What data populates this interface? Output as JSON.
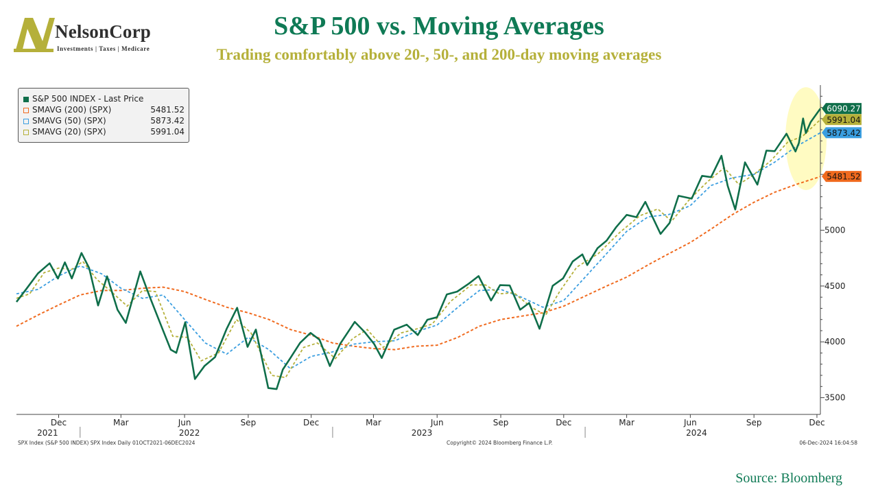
{
  "header": {
    "title": "S&P 500 vs. Moving Averages",
    "subtitle": "Trading comfortably above 20-, 50-, and 200-day moving averages"
  },
  "logo": {
    "name": "NelsonCorp",
    "tagline": "Investments | Taxes | Medicare",
    "colors": {
      "mark": "#b5b03a",
      "text": "#2f2f2f"
    }
  },
  "colors": {
    "title": "#0f7a55",
    "subtitle": "#b5b03a",
    "price": "#0f6e4a",
    "sma200": "#f06a1e",
    "sma50": "#3a9ee0",
    "sma20": "#b5b03a",
    "highlight": "#fffbc2"
  },
  "legend": {
    "items": [
      {
        "label": "S&P 500 INDEX - Last Price",
        "value": ""
      },
      {
        "label": "SMAVG (200) (SPX)",
        "value": "5481.52"
      },
      {
        "label": "SMAVG (50) (SPX)",
        "value": "5873.42"
      },
      {
        "label": "SMAVG (20) (SPX)",
        "value": "5991.04"
      }
    ]
  },
  "footer": {
    "left": "SPX Index (S&P 500 INDEX) SPX Index  Daily 01OCT2021-06DEC2024",
    "center": "Copyright© 2024 Bloomberg Finance L.P.",
    "right": "06-Dec-2024 16:04:58",
    "source": "Source: Bloomberg"
  },
  "chart_data": {
    "type": "line",
    "x_range": [
      "2021-10-01",
      "2024-12-06"
    ],
    "ylim": [
      3350,
      6300
    ],
    "y_ticks": [
      "3500",
      "4000",
      "4500",
      "5000"
    ],
    "x_tick_labels": [
      "Dec",
      "Mar",
      "Jun",
      "Sep",
      "Dec",
      "Mar",
      "Jun",
      "Sep",
      "Dec",
      "Mar",
      "Jun",
      "Sep",
      "Dec"
    ],
    "x_tick_dates": [
      "2021-12-01",
      "2022-03-01",
      "2022-06-01",
      "2022-09-01",
      "2022-12-01",
      "2023-03-01",
      "2023-06-01",
      "2023-09-01",
      "2023-12-01",
      "2024-03-01",
      "2024-06-01",
      "2024-09-01",
      "2024-12-01"
    ],
    "year_labels": [
      "2021",
      "2022",
      "2023",
      "2024"
    ],
    "year_label_dates": [
      "2021-11-15",
      "2022-06-08",
      "2023-05-10",
      "2024-06-10"
    ],
    "year_dividers": [
      "2022-01-01",
      "2023-01-01",
      "2024-01-01"
    ],
    "last_value_tags": [
      "6090.27",
      "5991.04",
      "5873.42",
      "5481.52"
    ],
    "annotation": "highlight ellipse around latest values",
    "series": [
      {
        "name": "S&P 500 INDEX - Last Price",
        "key": "price",
        "last": 6090.27,
        "points": [
          [
            "2021-10-01",
            4357
          ],
          [
            "2021-10-15",
            4471
          ],
          [
            "2021-11-01",
            4613
          ],
          [
            "2021-11-18",
            4704
          ],
          [
            "2021-11-30",
            4567
          ],
          [
            "2021-12-10",
            4712
          ],
          [
            "2021-12-20",
            4568
          ],
          [
            "2022-01-03",
            4796
          ],
          [
            "2022-01-14",
            4662
          ],
          [
            "2022-01-27",
            4326
          ],
          [
            "2022-02-09",
            4587
          ],
          [
            "2022-02-24",
            4288
          ],
          [
            "2022-03-08",
            4170
          ],
          [
            "2022-03-29",
            4631
          ],
          [
            "2022-04-12",
            4397
          ],
          [
            "2022-04-29",
            4132
          ],
          [
            "2022-05-12",
            3930
          ],
          [
            "2022-05-20",
            3901
          ],
          [
            "2022-06-02",
            4176
          ],
          [
            "2022-06-16",
            3667
          ],
          [
            "2022-06-30",
            3785
          ],
          [
            "2022-07-15",
            3863
          ],
          [
            "2022-08-01",
            4119
          ],
          [
            "2022-08-16",
            4305
          ],
          [
            "2022-08-31",
            3955
          ],
          [
            "2022-09-12",
            4110
          ],
          [
            "2022-09-30",
            3586
          ],
          [
            "2022-10-12",
            3577
          ],
          [
            "2022-10-21",
            3752
          ],
          [
            "2022-11-01",
            3856
          ],
          [
            "2022-11-15",
            3991
          ],
          [
            "2022-11-30",
            4080
          ],
          [
            "2022-12-13",
            4019
          ],
          [
            "2022-12-28",
            3783
          ],
          [
            "2023-01-12",
            3983
          ],
          [
            "2023-02-02",
            4179
          ],
          [
            "2023-02-16",
            4090
          ],
          [
            "2023-03-02",
            3981
          ],
          [
            "2023-03-13",
            3855
          ],
          [
            "2023-03-31",
            4109
          ],
          [
            "2023-04-18",
            4154
          ],
          [
            "2023-05-04",
            4061
          ],
          [
            "2023-05-18",
            4198
          ],
          [
            "2023-06-01",
            4221
          ],
          [
            "2023-06-15",
            4425
          ],
          [
            "2023-06-30",
            4450
          ],
          [
            "2023-07-17",
            4522
          ],
          [
            "2023-07-31",
            4589
          ],
          [
            "2023-08-18",
            4370
          ],
          [
            "2023-08-31",
            4508
          ],
          [
            "2023-09-14",
            4505
          ],
          [
            "2023-09-29",
            4288
          ],
          [
            "2023-10-12",
            4349
          ],
          [
            "2023-10-27",
            4117
          ],
          [
            "2023-11-15",
            4502
          ],
          [
            "2023-11-30",
            4568
          ],
          [
            "2023-12-14",
            4720
          ],
          [
            "2023-12-28",
            4783
          ],
          [
            "2024-01-04",
            4688
          ],
          [
            "2024-01-19",
            4840
          ],
          [
            "2024-02-01",
            4906
          ],
          [
            "2024-02-15",
            5029
          ],
          [
            "2024-03-01",
            5137
          ],
          [
            "2024-03-15",
            5117
          ],
          [
            "2024-03-28",
            5254
          ],
          [
            "2024-04-19",
            4967
          ],
          [
            "2024-05-02",
            5064
          ],
          [
            "2024-05-15",
            5308
          ],
          [
            "2024-06-03",
            5283
          ],
          [
            "2024-06-18",
            5487
          ],
          [
            "2024-07-01",
            5475
          ],
          [
            "2024-07-16",
            5667
          ],
          [
            "2024-07-25",
            5399
          ],
          [
            "2024-08-05",
            5186
          ],
          [
            "2024-08-19",
            5608
          ],
          [
            "2024-09-06",
            5408
          ],
          [
            "2024-09-19",
            5713
          ],
          [
            "2024-10-01",
            5708
          ],
          [
            "2024-10-18",
            5864
          ],
          [
            "2024-10-31",
            5705
          ],
          [
            "2024-11-05",
            5782
          ],
          [
            "2024-11-11",
            6001
          ],
          [
            "2024-11-15",
            5870
          ],
          [
            "2024-11-22",
            5969
          ],
          [
            "2024-12-06",
            6090
          ]
        ]
      },
      {
        "name": "SMAVG (200) (SPX)",
        "key": "sma200",
        "last": 5481.52,
        "points": [
          [
            "2021-10-01",
            4140
          ],
          [
            "2021-11-01",
            4240
          ],
          [
            "2021-12-01",
            4330
          ],
          [
            "2022-01-01",
            4420
          ],
          [
            "2022-02-01",
            4460
          ],
          [
            "2022-03-01",
            4460
          ],
          [
            "2022-04-01",
            4480
          ],
          [
            "2022-05-01",
            4490
          ],
          [
            "2022-06-01",
            4450
          ],
          [
            "2022-07-01",
            4380
          ],
          [
            "2022-08-01",
            4310
          ],
          [
            "2022-09-01",
            4260
          ],
          [
            "2022-10-01",
            4200
          ],
          [
            "2022-11-01",
            4110
          ],
          [
            "2022-12-01",
            4060
          ],
          [
            "2023-01-01",
            3990
          ],
          [
            "2023-02-01",
            3960
          ],
          [
            "2023-03-01",
            3940
          ],
          [
            "2023-04-01",
            3930
          ],
          [
            "2023-05-01",
            3960
          ],
          [
            "2023-06-01",
            3970
          ],
          [
            "2023-07-01",
            4040
          ],
          [
            "2023-08-01",
            4140
          ],
          [
            "2023-09-01",
            4200
          ],
          [
            "2023-10-01",
            4230
          ],
          [
            "2023-11-01",
            4260
          ],
          [
            "2023-12-01",
            4320
          ],
          [
            "2024-01-01",
            4410
          ],
          [
            "2024-02-01",
            4500
          ],
          [
            "2024-03-01",
            4580
          ],
          [
            "2024-04-01",
            4690
          ],
          [
            "2024-05-01",
            4790
          ],
          [
            "2024-06-01",
            4890
          ],
          [
            "2024-07-01",
            5010
          ],
          [
            "2024-08-01",
            5140
          ],
          [
            "2024-09-01",
            5250
          ],
          [
            "2024-10-01",
            5340
          ],
          [
            "2024-11-01",
            5410
          ],
          [
            "2024-12-06",
            5481
          ]
        ]
      },
      {
        "name": "SMAVG (50) (SPX)",
        "key": "sma50",
        "last": 5873.42,
        "points": [
          [
            "2021-10-01",
            4430
          ],
          [
            "2021-11-01",
            4470
          ],
          [
            "2021-12-01",
            4590
          ],
          [
            "2022-01-01",
            4680
          ],
          [
            "2022-02-01",
            4610
          ],
          [
            "2022-03-01",
            4480
          ],
          [
            "2022-04-01",
            4390
          ],
          [
            "2022-05-01",
            4420
          ],
          [
            "2022-06-01",
            4200
          ],
          [
            "2022-07-01",
            3990
          ],
          [
            "2022-08-01",
            3890
          ],
          [
            "2022-09-01",
            4040
          ],
          [
            "2022-10-01",
            3930
          ],
          [
            "2022-11-01",
            3760
          ],
          [
            "2022-12-01",
            3870
          ],
          [
            "2023-01-01",
            3910
          ],
          [
            "2023-02-01",
            3980
          ],
          [
            "2023-03-01",
            4000
          ],
          [
            "2023-04-01",
            4010
          ],
          [
            "2023-05-01",
            4090
          ],
          [
            "2023-06-01",
            4150
          ],
          [
            "2023-07-01",
            4310
          ],
          [
            "2023-08-01",
            4460
          ],
          [
            "2023-09-01",
            4470
          ],
          [
            "2023-10-01",
            4400
          ],
          [
            "2023-11-01",
            4310
          ],
          [
            "2023-12-01",
            4370
          ],
          [
            "2024-01-01",
            4580
          ],
          [
            "2024-02-01",
            4790
          ],
          [
            "2024-03-01",
            4990
          ],
          [
            "2024-04-01",
            5120
          ],
          [
            "2024-05-01",
            5140
          ],
          [
            "2024-06-01",
            5220
          ],
          [
            "2024-07-01",
            5400
          ],
          [
            "2024-08-01",
            5470
          ],
          [
            "2024-09-01",
            5500
          ],
          [
            "2024-10-01",
            5610
          ],
          [
            "2024-11-01",
            5750
          ],
          [
            "2024-12-06",
            5873
          ]
        ]
      },
      {
        "name": "SMAVG (20) (SPX)",
        "key": "sma20",
        "last": 5991.04,
        "points": [
          [
            "2021-10-01",
            4390
          ],
          [
            "2021-10-20",
            4430
          ],
          [
            "2021-11-10",
            4620
          ],
          [
            "2021-12-01",
            4660
          ],
          [
            "2021-12-20",
            4650
          ],
          [
            "2022-01-05",
            4720
          ],
          [
            "2022-01-25",
            4560
          ],
          [
            "2022-02-15",
            4450
          ],
          [
            "2022-03-10",
            4320
          ],
          [
            "2022-04-01",
            4460
          ],
          [
            "2022-04-20",
            4450
          ],
          [
            "2022-05-15",
            4050
          ],
          [
            "2022-06-05",
            4040
          ],
          [
            "2022-06-25",
            3830
          ],
          [
            "2022-07-20",
            3900
          ],
          [
            "2022-08-15",
            4200
          ],
          [
            "2022-09-05",
            4080
          ],
          [
            "2022-10-05",
            3700
          ],
          [
            "2022-10-25",
            3680
          ],
          [
            "2022-11-20",
            3950
          ],
          [
            "2022-12-10",
            3990
          ],
          [
            "2023-01-05",
            3850
          ],
          [
            "2023-01-30",
            4030
          ],
          [
            "2023-02-20",
            4110
          ],
          [
            "2023-03-15",
            3950
          ],
          [
            "2023-04-10",
            4080
          ],
          [
            "2023-05-05",
            4120
          ],
          [
            "2023-05-25",
            4160
          ],
          [
            "2023-06-20",
            4360
          ],
          [
            "2023-07-20",
            4510
          ],
          [
            "2023-08-10",
            4510
          ],
          [
            "2023-08-30",
            4430
          ],
          [
            "2023-09-20",
            4440
          ],
          [
            "2023-10-15",
            4310
          ],
          [
            "2023-11-05",
            4240
          ],
          [
            "2023-11-25",
            4450
          ],
          [
            "2023-12-20",
            4670
          ],
          [
            "2024-01-20",
            4790
          ],
          [
            "2024-02-20",
            4980
          ],
          [
            "2024-03-20",
            5130
          ],
          [
            "2024-04-15",
            5190
          ],
          [
            "2024-05-05",
            5080
          ],
          [
            "2024-05-30",
            5270
          ],
          [
            "2024-06-25",
            5430
          ],
          [
            "2024-07-20",
            5560
          ],
          [
            "2024-08-10",
            5410
          ],
          [
            "2024-08-30",
            5490
          ],
          [
            "2024-09-25",
            5620
          ],
          [
            "2024-10-20",
            5790
          ],
          [
            "2024-11-10",
            5840
          ],
          [
            "2024-12-06",
            5991
          ]
        ]
      }
    ]
  }
}
